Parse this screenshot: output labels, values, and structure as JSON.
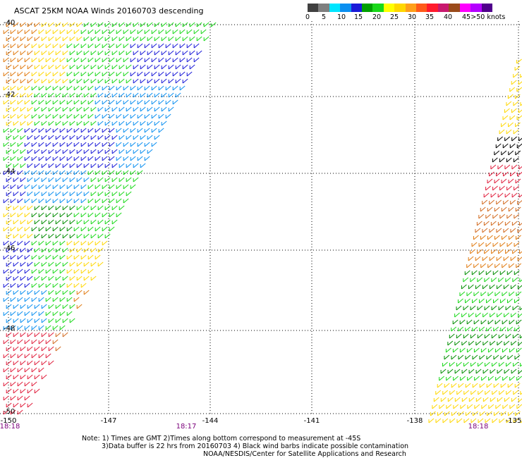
{
  "title": "ASCAT 25KM NOAA Winds 20160703 descending",
  "legend": {
    "labels": [
      "0",
      "5",
      "10",
      "15",
      "20",
      "25",
      "30",
      "35",
      "40",
      "45",
      ">50 knots"
    ],
    "colors": [
      "#404040",
      "#7f7f7f",
      "#00e5ff",
      "#0a8ff0",
      "#1a1ad8",
      "#00a000",
      "#19d819",
      "#ffff00",
      "#ffd700",
      "#ff9f1a",
      "#ff5a1a",
      "#ff1a2c",
      "#c8186e",
      "#9a4a1a",
      "#ff00ff",
      "#b400ff",
      "#50008c"
    ]
  },
  "latitudes": [
    "-40",
    "-42",
    "-44",
    "-46",
    "-48",
    "-50"
  ],
  "longitudes": [
    "-150",
    "-147",
    "-144",
    "-141",
    "-138",
    "-135"
  ],
  "times": [
    "18:18",
    "18:17",
    "18:18"
  ],
  "notes": {
    "line1": "Note: 1) Times are GMT  2)Times along bottom correspond to measurement at -45S",
    "line2": "3)Data buffer is 22 hrs from 20160703  4) Black wind barbs indicate possible contamination",
    "line3": "NOAA/NESDIS/Center for Satellite Applications and Research"
  },
  "swath_colors": {
    "black": "#000000",
    "orange": "#e07a10",
    "yellow": "#ffd700",
    "green": "#19d819",
    "dark_green": "#008c00",
    "blue": "#1a1ad8",
    "light_blue": "#0a8ff0",
    "red": "#e01e3c",
    "brown_orange": "#d2691e"
  }
}
